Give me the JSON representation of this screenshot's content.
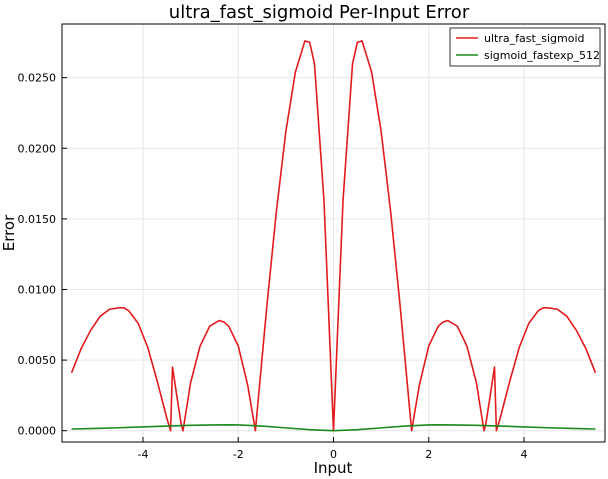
{
  "chart_data": {
    "type": "line",
    "title": "ultra_fast_sigmoid Per-Input Error",
    "xlabel": "Input",
    "ylabel": "Error",
    "xlim": [
      -5.7,
      5.7
    ],
    "ylim": [
      -0.0008,
      0.0288
    ],
    "x_ticks": [
      -4,
      -2,
      0,
      2,
      4
    ],
    "x_tick_labels": [
      "-4",
      "-2",
      "0",
      "2",
      "4"
    ],
    "y_ticks": [
      0,
      0.005,
      0.01,
      0.015,
      0.02,
      0.025
    ],
    "y_tick_labels": [
      "0.0000",
      "0.0050",
      "0.0100",
      "0.0150",
      "0.0200",
      "0.0250"
    ],
    "grid": true,
    "legend_position": "top-right",
    "series": [
      {
        "name": "ultra_fast_sigmoid",
        "color": "#e31a1c",
        "x": [
          -5.5,
          -5.3,
          -5.1,
          -4.9,
          -4.7,
          -4.5,
          -4.4,
          -4.3,
          -4.1,
          -3.9,
          -3.7,
          -3.5,
          -3.42,
          -3.38,
          -3.3,
          -3.2,
          -3.16,
          -3.0,
          -2.8,
          -2.6,
          -2.4,
          -2.3,
          -2.2,
          -2.0,
          -1.8,
          -1.64,
          -1.4,
          -1.2,
          -1.0,
          -0.8,
          -0.6,
          -0.5,
          -0.4,
          -0.2,
          0.0,
          0.2,
          0.4,
          0.5,
          0.6,
          0.8,
          1.0,
          1.2,
          1.4,
          1.64,
          1.8,
          2.0,
          2.2,
          2.3,
          2.4,
          2.6,
          2.8,
          3.0,
          3.16,
          3.2,
          3.3,
          3.38,
          3.42,
          3.5,
          3.7,
          3.9,
          4.1,
          4.3,
          4.4,
          4.5,
          4.7,
          4.9,
          5.1,
          5.3,
          5.5
        ],
        "y": [
          0.0041,
          0.0058,
          0.0071,
          0.0081,
          0.0086,
          0.0087,
          0.0087,
          0.0085,
          0.0076,
          0.0059,
          0.0035,
          0.0009,
          0.0,
          0.0045,
          0.0027,
          0.0005,
          0.0,
          0.0034,
          0.006,
          0.0074,
          0.0078,
          0.0077,
          0.0074,
          0.006,
          0.0032,
          0.0,
          0.0088,
          0.0155,
          0.0212,
          0.0254,
          0.0276,
          0.0275,
          0.026,
          0.0163,
          0.0,
          0.0163,
          0.026,
          0.0275,
          0.0276,
          0.0254,
          0.0212,
          0.0155,
          0.0088,
          0.0,
          0.0032,
          0.006,
          0.0074,
          0.0077,
          0.0078,
          0.0074,
          0.006,
          0.0034,
          0.0,
          0.0005,
          0.0027,
          0.0045,
          0.0,
          0.0009,
          0.0035,
          0.0059,
          0.0076,
          0.0085,
          0.0087,
          0.0087,
          0.0086,
          0.0081,
          0.0071,
          0.0058,
          0.0041
        ]
      },
      {
        "name": "sigmoid_fastexp_512",
        "color": "#1a8a1a",
        "x": [
          -5.5,
          -5.0,
          -4.5,
          -4.0,
          -3.5,
          -3.0,
          -2.5,
          -2.2,
          -2.0,
          -1.5,
          -1.0,
          -0.5,
          0.0,
          0.5,
          1.0,
          1.5,
          2.0,
          2.2,
          2.5,
          3.0,
          3.5,
          4.0,
          4.5,
          5.0,
          5.5
        ],
        "y": [
          0.00012,
          0.00016,
          0.00021,
          0.00027,
          0.00033,
          0.00038,
          0.00041,
          0.00042,
          0.00041,
          0.00033,
          0.0002,
          7e-05,
          0.0,
          7e-05,
          0.0002,
          0.00033,
          0.00041,
          0.00042,
          0.00041,
          0.00038,
          0.00033,
          0.00027,
          0.00021,
          0.00016,
          0.00012
        ]
      }
    ]
  }
}
